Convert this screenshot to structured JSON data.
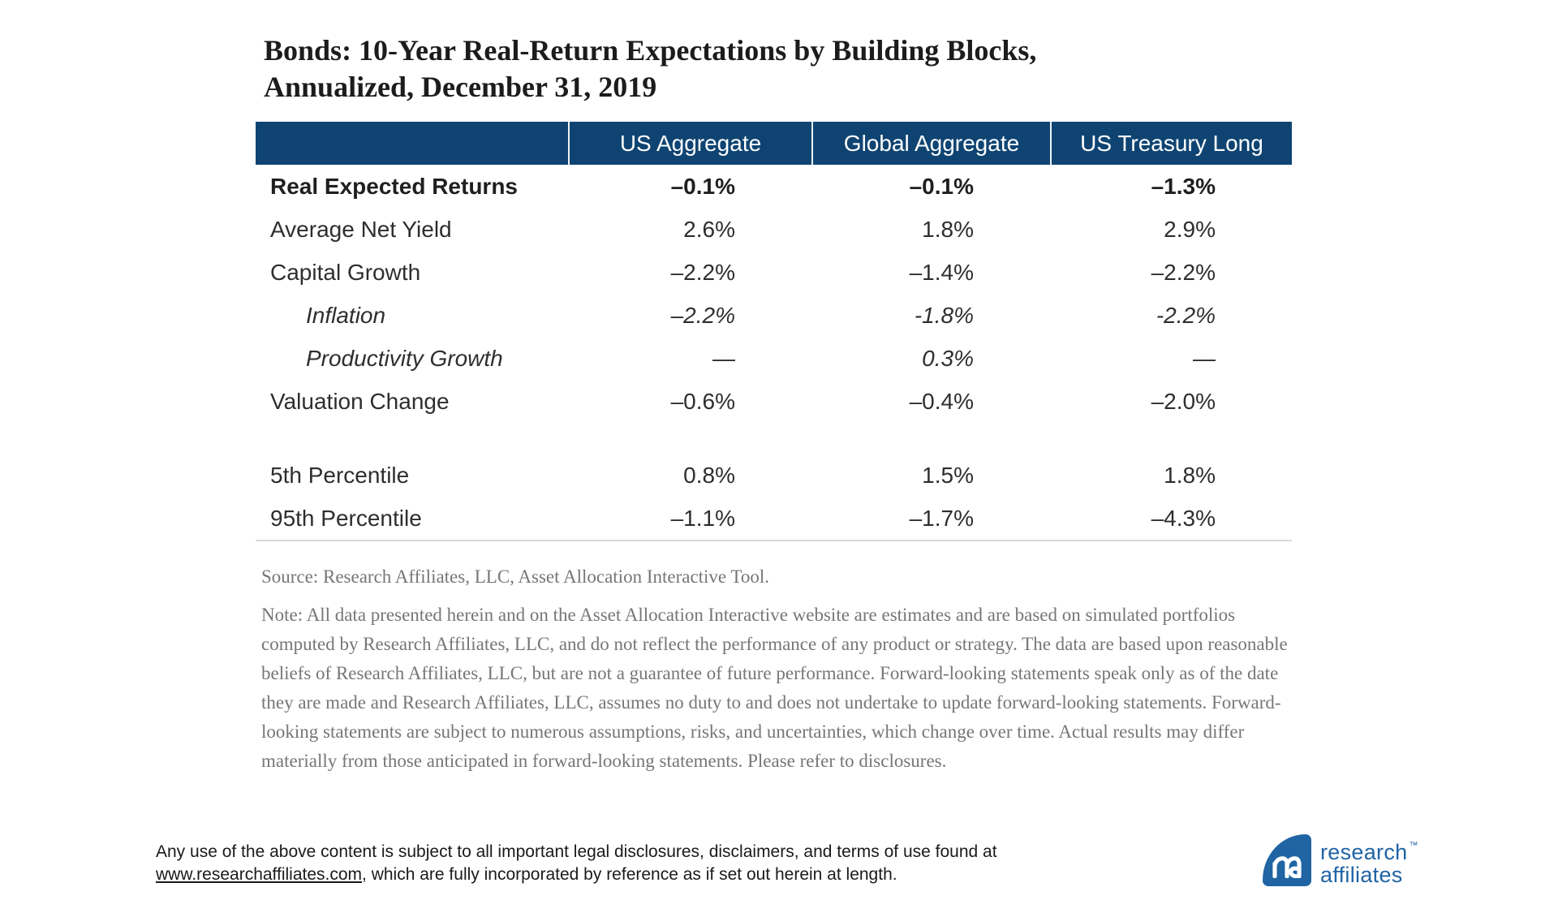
{
  "title": {
    "line1": "Bonds: 10-Year Real-Return Expectations by Building Blocks,",
    "line2": "Annualized, December 31, 2019"
  },
  "table": {
    "columns": [
      "US Aggregate",
      "Global Aggregate",
      "US Treasury Long"
    ],
    "rows": [
      {
        "label": "Real Expected Returns",
        "style": "bold",
        "values": [
          "–0.1%",
          "–0.1%",
          "–1.3%"
        ]
      },
      {
        "label": "Average Net Yield",
        "style": "normal",
        "values": [
          "2.6%",
          "1.8%",
          "2.9%"
        ]
      },
      {
        "label": "Capital Growth",
        "style": "normal",
        "values": [
          "–2.2%",
          "–1.4%",
          "–2.2%"
        ]
      },
      {
        "label": "Inflation",
        "style": "italic",
        "values": [
          "–2.2%",
          "-1.8%",
          "-2.2%"
        ]
      },
      {
        "label": "Productivity Growth",
        "style": "italic",
        "values": [
          "—",
          "0.3%",
          "—"
        ]
      },
      {
        "label": "Valuation Change",
        "style": "normal",
        "values": [
          "–0.6%",
          "–0.4%",
          "–2.0%"
        ]
      },
      {
        "label": "",
        "style": "spacer",
        "values": [
          "",
          "",
          ""
        ]
      },
      {
        "label": "5th Percentile",
        "style": "normal",
        "values": [
          "0.8%",
          "1.5%",
          "1.8%"
        ]
      },
      {
        "label": "95th Percentile",
        "style": "normal",
        "values": [
          "–1.1%",
          "–1.7%",
          "–4.3%"
        ]
      }
    ]
  },
  "notes": {
    "source": "Source: Research Affiliates, LLC, Asset Allocation Interactive Tool.",
    "note": "Note: All data presented herein and on the Asset Allocation Interactive website are estimates and are based on simulated portfolios computed by Research Affiliates, LLC, and do not reflect the performance of any product or strategy. The data are based upon reasonable beliefs of Research Affiliates, LLC, but are not a guarantee of future performance. Forward-looking statements speak only as of the date they are made and Research Affiliates, LLC, assumes no duty to and does not undertake to update forward-looking statements. Forward-looking statements are subject to numerous assumptions, risks, and uncertainties, which change over time. Actual results may differ materially from those anticipated in forward-looking statements. Please refer to disclosures."
  },
  "footer": {
    "text_before_link": "Any use of the above content is subject to all important legal disclosures, disclaimers, and terms of use found at",
    "link": "www.researchaffiliates.com",
    "text_after_link": ", which are fully incorporated by reference as if set out herein at length."
  },
  "logo": {
    "line1": "research",
    "line2": "affiliates",
    "tm": "™"
  },
  "colors": {
    "header_bg": "#0f4472",
    "logo_blue": "#2064a4",
    "note_gray": "#767676",
    "table_bottom_border": "#dadada"
  }
}
